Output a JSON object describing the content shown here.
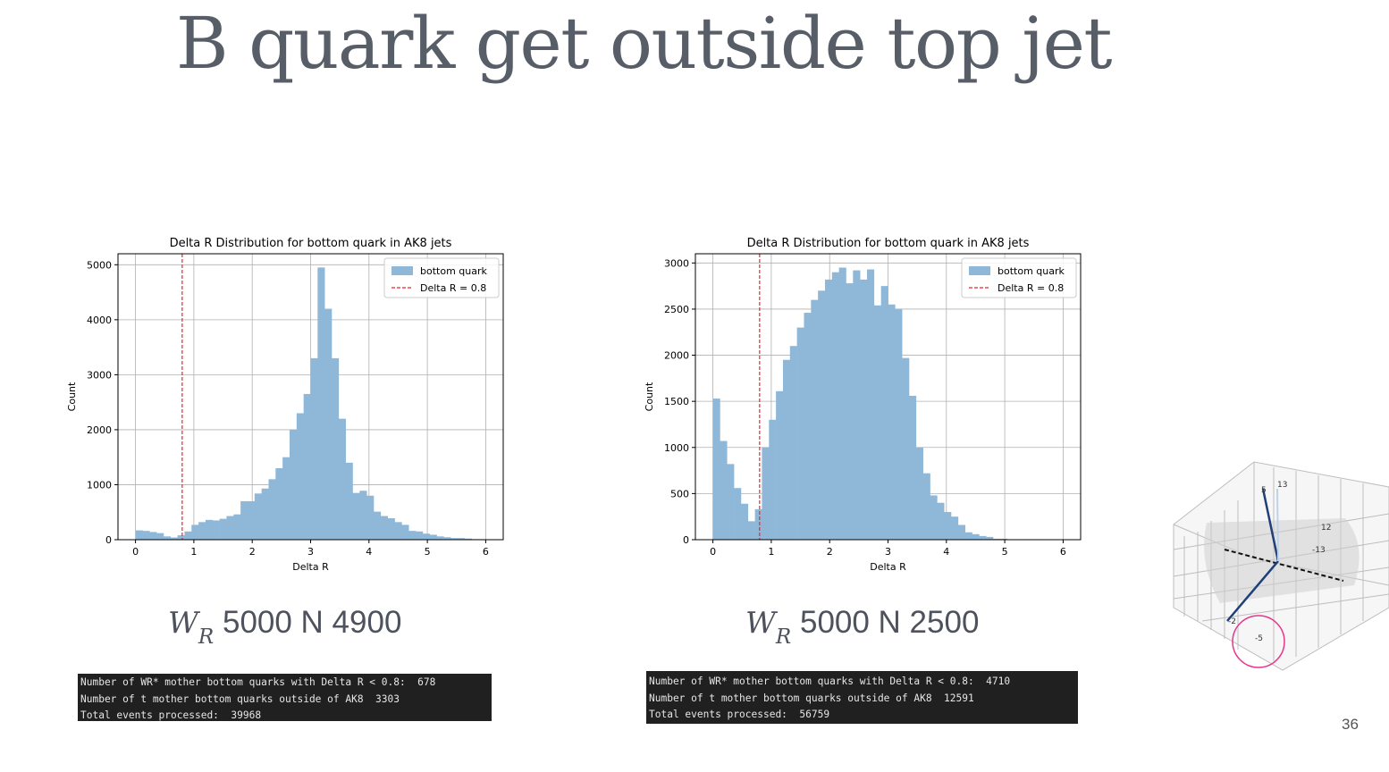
{
  "slide": {
    "title": "B quark get outside top jet",
    "page_number": "36"
  },
  "captions": [
    {
      "w": "W",
      "sub": "R",
      "text": " 5000 N 4900"
    },
    {
      "w": "W",
      "sub": "R",
      "text": " 5000 N 2500"
    }
  ],
  "terminals": [
    [
      "Number of WR* mother bottom quarks with Delta R < 0.8:  678",
      "Number of t mother bottom quarks outside of AK8  3303",
      "Total events processed:  39968"
    ],
    [
      "Number of WR* mother bottom quarks with Delta R < 0.8:  4710",
      "Number of t mother bottom quarks outside of AK8  12591",
      "Total events processed:  56759"
    ]
  ],
  "chart_data": [
    {
      "type": "bar",
      "title": "Delta R Distribution for bottom quark in AK8 jets",
      "xlabel": "Delta R",
      "ylabel": "Count",
      "xlim": [
        -0.3,
        6.3
      ],
      "ylim": [
        0,
        5200
      ],
      "xticks": [
        0,
        1,
        2,
        3,
        4,
        5,
        6
      ],
      "yticks": [
        0,
        1000,
        2000,
        3000,
        4000,
        5000
      ],
      "grid": true,
      "legend_position": "top-right",
      "bin_start": 0,
      "bin_width": 0.12,
      "series": [
        {
          "name": "bottom quark",
          "color": "#8fb8d8",
          "values": [
            170,
            160,
            140,
            120,
            60,
            40,
            80,
            150,
            270,
            320,
            360,
            350,
            380,
            430,
            460,
            700,
            700,
            840,
            930,
            1100,
            1300,
            1500,
            2000,
            2300,
            2650,
            3300,
            4950,
            4200,
            3300,
            2200,
            1400,
            850,
            890,
            800,
            510,
            430,
            390,
            320,
            270,
            160,
            150,
            110,
            90,
            60,
            45,
            30,
            30,
            20,
            10,
            10
          ]
        }
      ],
      "reference_line": {
        "name": "Delta R = 0.8",
        "x": 0.8,
        "color": "#e8272b"
      }
    },
    {
      "type": "bar",
      "title": "Delta R Distribution for bottom quark in AK8 jets",
      "xlabel": "Delta R",
      "ylabel": "Count",
      "xlim": [
        -0.3,
        6.3
      ],
      "ylim": [
        0,
        3100
      ],
      "xticks": [
        0,
        1,
        2,
        3,
        4,
        5,
        6
      ],
      "yticks": [
        0,
        500,
        1000,
        1500,
        2000,
        2500,
        3000
      ],
      "grid": true,
      "legend_position": "top-right",
      "bin_start": 0,
      "bin_width": 0.12,
      "series": [
        {
          "name": "bottom quark",
          "color": "#8fb8d8",
          "values": [
            1530,
            1070,
            820,
            560,
            390,
            200,
            330,
            1000,
            1300,
            1610,
            1950,
            2100,
            2300,
            2460,
            2600,
            2700,
            2820,
            2900,
            2950,
            2780,
            2920,
            2820,
            2930,
            2540,
            2750,
            2550,
            2500,
            1970,
            1560,
            1000,
            720,
            480,
            400,
            300,
            250,
            160,
            80,
            60,
            40,
            30,
            10,
            10,
            0,
            0,
            5,
            5,
            5,
            3,
            2,
            2
          ]
        }
      ],
      "reference_line": {
        "name": "Delta R = 0.8",
        "x": 0.8,
        "color": "#e8272b"
      }
    }
  ],
  "plot3d": {
    "tick_labels": [
      "5",
      "13",
      "12",
      "-13",
      "-2",
      "-5"
    ],
    "highlight_color": "#e8348c"
  }
}
